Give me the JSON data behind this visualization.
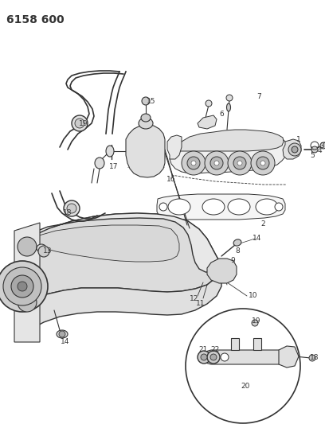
{
  "title": "6158 600",
  "bg_color": "#ffffff",
  "lc": "#333333",
  "fig_width": 4.08,
  "fig_height": 5.33,
  "dpi": 100,
  "label_fs": 6.5,
  "title_fs": 10
}
